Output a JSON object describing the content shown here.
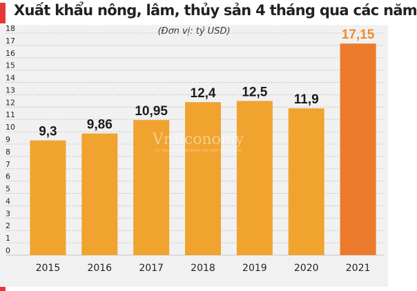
{
  "header": {
    "title": "Xuất khẩu nông, lâm, thủy sản 4 tháng qua các năm",
    "unit_note": "(Đơn vị: tỷ USD)"
  },
  "watermark": {
    "name": "VnEconomy",
    "tagline": "CƠ QUAN CỦA VIỆN KHOA HỌC KINH TẾ VIỆT NAM"
  },
  "colors": {
    "bar": "#f0a32e",
    "highlight_bar": "#ec7a2c",
    "highlight_label": "#ef8a30",
    "accent": "#e53935",
    "grid": "#b8b8b8",
    "plot_bg": "#f1f1f1"
  },
  "chart_data": {
    "type": "bar",
    "categories": [
      "2015",
      "2016",
      "2017",
      "2018",
      "2019",
      "2020",
      "2021"
    ],
    "values": [
      9.3,
      9.86,
      10.95,
      12.4,
      12.5,
      11.9,
      17.15
    ],
    "value_labels": [
      "9,3",
      "9,86",
      "10,95",
      "12,4",
      "12,5",
      "11,9",
      "17,15"
    ],
    "highlight_index": 6,
    "ylim": [
      0,
      18
    ],
    "yticks": [
      0,
      1,
      2,
      3,
      4,
      5,
      6,
      7,
      8,
      9,
      10,
      11,
      12,
      13,
      14,
      15,
      16,
      17,
      18
    ],
    "grid": true,
    "legend": "none"
  }
}
